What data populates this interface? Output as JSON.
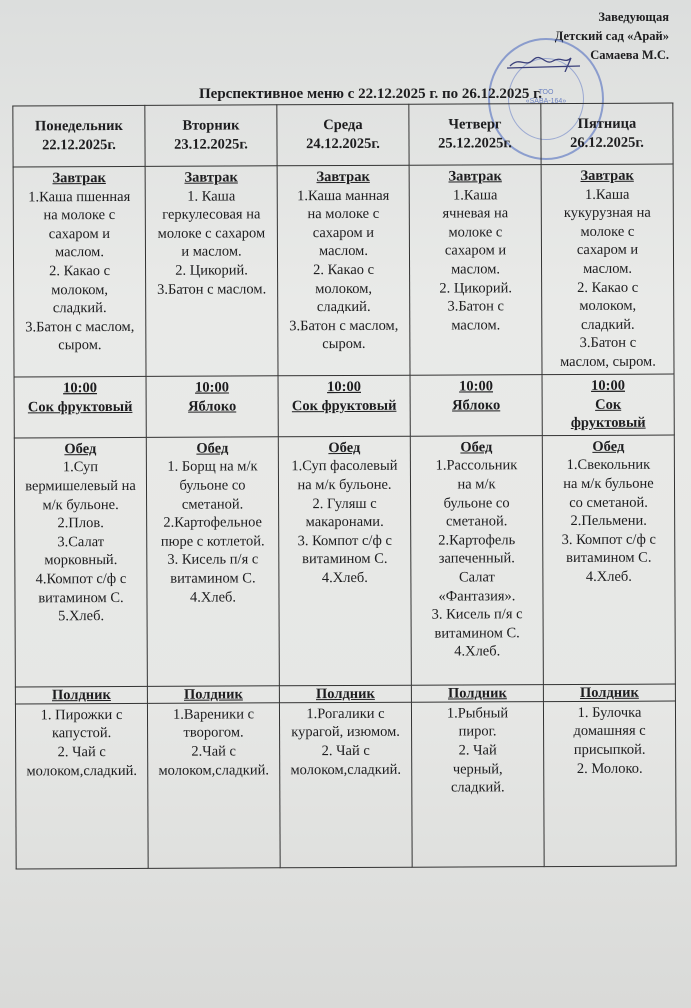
{
  "approval": {
    "position": "Заведующая",
    "organization": "Детский сад «Арай»",
    "name": "Самаева М.С.",
    "stamp_text": [
      "ТОО",
      "«SABA-164»"
    ]
  },
  "title": "Перспективное меню с 22.12.2025 г. по 26.12.2025 г.",
  "days": [
    {
      "day": "Понедельник",
      "date": "22.12.2025г."
    },
    {
      "day": "Вторник",
      "date": "23.12.2025г."
    },
    {
      "day": "Среда",
      "date": "24.12.2025г."
    },
    {
      "day": "Четверг",
      "date": "25.12.2025г."
    },
    {
      "day": "Пятница",
      "date": "26.12.2025г."
    }
  ],
  "breakfast": {
    "label": "Завтрак",
    "cells": [
      [
        "1.Каша пшенная",
        "на молоке с",
        "сахаром и",
        "маслом.",
        "2. Какао с",
        "молоком,",
        "сладкий.",
        "3.Батон с маслом,",
        "сыром."
      ],
      [
        "1. Каша",
        "геркулесовая на",
        "молоке с сахаром",
        "и маслом.",
        "2. Цикорий.",
        "3.Батон с маслом."
      ],
      [
        "1.Каша манная",
        "на молоке с",
        "сахаром и",
        "маслом.",
        "2. Какао с",
        "молоком,",
        "сладкий.",
        "3.Батон с маслом,",
        "сыром."
      ],
      [
        "1.Каша",
        "ячневая на",
        "молоке с",
        "сахаром и",
        "маслом.",
        "2. Цикорий.",
        "3.Батон с",
        "маслом."
      ],
      [
        "1.Каша",
        "кукурузная на",
        "молоке с",
        "сахаром и",
        "маслом.",
        "2. Какао с",
        "молоком,",
        "сладкий.",
        "3.Батон с",
        "маслом, сыром."
      ]
    ]
  },
  "snack_10": {
    "time": "10:00",
    "cells": [
      [
        "Сок фруктовый"
      ],
      [
        "Яблоко"
      ],
      [
        "Сок фруктовый"
      ],
      [
        "Яблоко"
      ],
      [
        "Сок",
        "фруктовый"
      ]
    ]
  },
  "lunch": {
    "label": "Обед",
    "cells": [
      [
        "1.Суп",
        "вермишелевый на",
        "м/к бульоне.",
        "2.Плов.",
        "3.Салат",
        "морковный.",
        "4.Компот с/ф с",
        "витамином С.",
        "5.Хлеб."
      ],
      [
        "1. Борщ на м/к",
        "бульоне со",
        "сметаной.",
        "2.Картофельное",
        "пюре с котлетой.",
        "3. Кисель п/я с",
        "витамином С.",
        "4.Хлеб."
      ],
      [
        "1.Суп фасолевый",
        "на м/к бульоне.",
        "2. Гуляш с",
        "макаронами.",
        "3. Компот с/ф с",
        "витамином С.",
        "4.Хлеб."
      ],
      [
        "1.Рассольник",
        "на м/к",
        "бульоне со",
        "сметаной.",
        "2.Картофель",
        "запеченный.",
        "Салат",
        "«Фантазия».",
        "3. Кисель п/я с",
        "витамином С.",
        "4.Хлеб."
      ],
      [
        "1.Свекольник",
        "на м/к бульоне",
        "со сметаной.",
        "2.Пельмени.",
        "3. Компот с/ф с",
        "витамином С.",
        "4.Хлеб."
      ]
    ]
  },
  "afternoon": {
    "label": "Полдник",
    "cells": [
      [
        "1. Пирожки с",
        "капустой.",
        "2. Чай с",
        "молоком,сладкий."
      ],
      [
        "1.Вареники с",
        "творогом.",
        "2.Чай с",
        "молоком,сладкий."
      ],
      [
        "1.Рогалики с",
        "курагой, изюмом.",
        "2. Чай с",
        "молоком,сладкий."
      ],
      [
        "1.Рыбный",
        "пирог.",
        "2. Чай",
        "черный,",
        "сладкий."
      ],
      [
        "1. Булочка",
        "домашняя с",
        "присыпкой.",
        "2. Молоко."
      ]
    ]
  }
}
